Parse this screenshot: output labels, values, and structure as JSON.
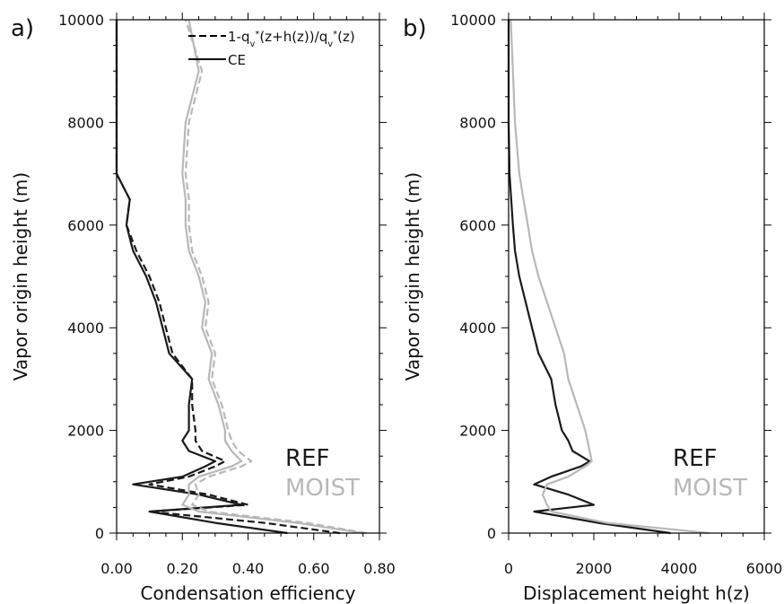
{
  "chart_data": [
    {
      "type": "line",
      "panel_label": "a)",
      "xlabel": "Condensation efficiency",
      "ylabel": "Vapor origin height (m)",
      "xlim": [
        0,
        0.8
      ],
      "xticks": [
        {
          "value": 0,
          "label": "0.00"
        },
        {
          "value": 0.2,
          "label": "0.20"
        },
        {
          "value": 0.4,
          "label": "0.40"
        },
        {
          "value": 0.6,
          "label": "0.60"
        },
        {
          "value": 0.8,
          "label": "0.80"
        }
      ],
      "ylim": [
        0,
        10000
      ],
      "yticks": [
        0,
        2000,
        4000,
        6000,
        8000,
        10000
      ],
      "y": [
        0,
        200,
        420,
        550,
        750,
        950,
        1100,
        1300,
        1400,
        1600,
        1800,
        2000,
        2500,
        3000,
        3500,
        4000,
        4500,
        5000,
        5500,
        6000,
        6500,
        7000,
        8000,
        9000,
        10000
      ],
      "series": [
        {
          "name": "REF",
          "color": "#1a1a1a",
          "lines": [
            {
              "style": "dashed",
              "values": [
                0.68,
                0.45,
                0.1,
                0.4,
                0.28,
                0.1,
                0.22,
                0.3,
                0.33,
                0.26,
                0.24,
                0.24,
                0.23,
                0.23,
                0.17,
                0.15,
                0.13,
                0.1,
                0.06,
                0.03,
                0.04,
                0,
                0,
                0,
                0
              ]
            },
            {
              "style": "solid",
              "values": [
                0.52,
                0.3,
                0.1,
                0.38,
                0.25,
                0.05,
                0.2,
                0.27,
                0.3,
                0.22,
                0.2,
                0.22,
                0.22,
                0.23,
                0.16,
                0.14,
                0.12,
                0.09,
                0.05,
                0.03,
                0.04,
                0,
                0,
                0,
                0
              ]
            }
          ]
        },
        {
          "name": "MOIST",
          "color": "#b8b8b8",
          "lines": [
            {
              "style": "dashed",
              "values": [
                0.76,
                0.58,
                0.28,
                0.23,
                0.25,
                0.24,
                0.28,
                0.38,
                0.41,
                0.37,
                0.35,
                0.34,
                0.32,
                0.29,
                0.3,
                0.27,
                0.28,
                0.26,
                0.23,
                0.22,
                0.22,
                0.21,
                0.22,
                0.26,
                0.21
              ]
            },
            {
              "style": "solid",
              "values": [
                0.75,
                0.55,
                0.25,
                0.2,
                0.22,
                0.22,
                0.25,
                0.35,
                0.38,
                0.35,
                0.33,
                0.33,
                0.31,
                0.28,
                0.29,
                0.26,
                0.27,
                0.25,
                0.22,
                0.21,
                0.21,
                0.2,
                0.21,
                0.25,
                0.22
              ]
            }
          ]
        }
      ],
      "legend": [
        {
          "style": "dashed",
          "label": [
            "1-q",
            "v",
            "*",
            "(z+h(z))/q",
            "v",
            "*",
            "(z)"
          ]
        },
        {
          "style": "solid",
          "label": [
            "CE"
          ]
        }
      ]
    },
    {
      "type": "line",
      "panel_label": "b)",
      "xlabel": "Displacement height h(z)",
      "ylabel": "Vapor origin height (m)",
      "xlim": [
        0,
        6000
      ],
      "xticks": [
        0,
        2000,
        4000,
        6000
      ],
      "ylim": [
        0,
        10000
      ],
      "yticks": [
        0,
        2000,
        4000,
        6000,
        8000,
        10000
      ],
      "y": [
        0,
        200,
        420,
        550,
        750,
        950,
        1100,
        1300,
        1400,
        1600,
        1800,
        2000,
        2500,
        3000,
        3500,
        4000,
        4500,
        5000,
        5500,
        6000,
        6500,
        7000,
        8000,
        9000,
        10000
      ],
      "series": [
        {
          "name": "REF",
          "color": "#1a1a1a",
          "lines": [
            {
              "style": "solid",
              "values": [
                3800,
                2100,
                600,
                2000,
                1400,
                600,
                1000,
                1700,
                1900,
                1500,
                1400,
                1250,
                1100,
                1000,
                700,
                550,
                400,
                250,
                150,
                100,
                60,
                20,
                0,
                0,
                0
              ]
            }
          ]
        },
        {
          "name": "MOIST",
          "color": "#b8b8b8",
          "lines": [
            {
              "style": "solid",
              "values": [
                4700,
                2300,
                1000,
                900,
                800,
                900,
                1400,
                1800,
                1950,
                1900,
                1850,
                1800,
                1600,
                1400,
                1300,
                1100,
                900,
                700,
                550,
                450,
                350,
                250,
                150,
                100,
                50
              ]
            }
          ]
        }
      ]
    }
  ]
}
